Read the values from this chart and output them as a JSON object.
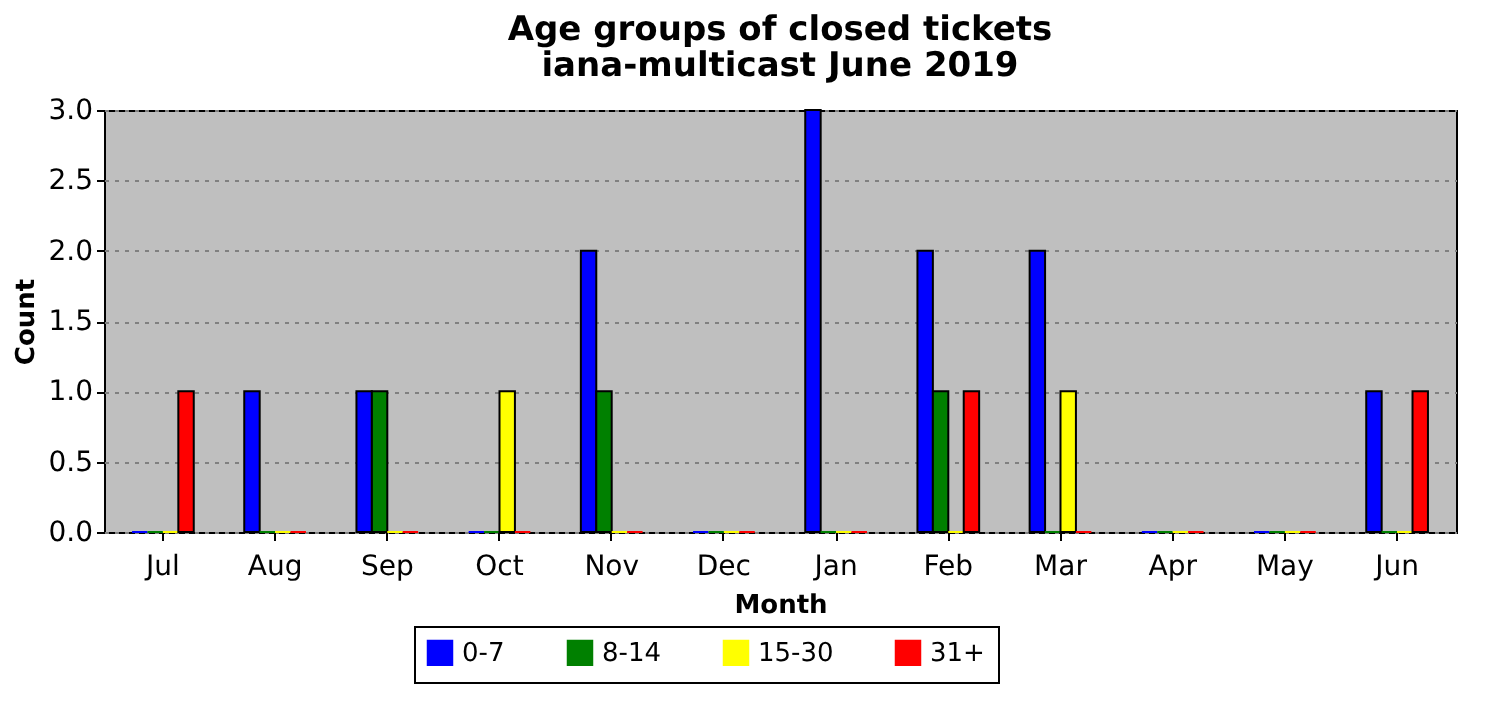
{
  "chart_data": {
    "type": "bar",
    "title": "Age groups of closed tickets",
    "subtitle": "iana-multicast June 2019",
    "xlabel": "Month",
    "ylabel": "Count",
    "categories": [
      "Jul",
      "Aug",
      "Sep",
      "Oct",
      "Nov",
      "Dec",
      "Jan",
      "Feb",
      "Mar",
      "Apr",
      "May",
      "Jun"
    ],
    "series": [
      {
        "name": "0-7",
        "color": "#0000ff",
        "values": [
          0,
          1,
          1,
          0,
          2,
          0,
          3,
          2,
          2,
          0,
          0,
          1
        ]
      },
      {
        "name": "8-14",
        "color": "#008000",
        "values": [
          0,
          0,
          1,
          0,
          1,
          0,
          0,
          1,
          0,
          0,
          0,
          0
        ]
      },
      {
        "name": "15-30",
        "color": "#ffff00",
        "values": [
          0,
          0,
          0,
          1,
          0,
          0,
          0,
          0,
          1,
          0,
          0,
          0
        ]
      },
      {
        "name": "31+",
        "color": "#ff0000",
        "values": [
          1,
          0,
          0,
          0,
          0,
          0,
          0,
          1,
          0,
          0,
          0,
          1
        ]
      }
    ],
    "ylim": [
      0,
      3
    ],
    "yticks": [
      {
        "value": 0,
        "label": "0.0"
      },
      {
        "value": 0.5,
        "label": "0.5"
      },
      {
        "value": 1,
        "label": "1.0"
      },
      {
        "value": 1.5,
        "label": "1.5"
      },
      {
        "value": 2,
        "label": "2.0"
      },
      {
        "value": 2.5,
        "label": "2.5"
      },
      {
        "value": 3,
        "label": "3.0"
      }
    ],
    "grid": "y",
    "legend": "bottom"
  }
}
